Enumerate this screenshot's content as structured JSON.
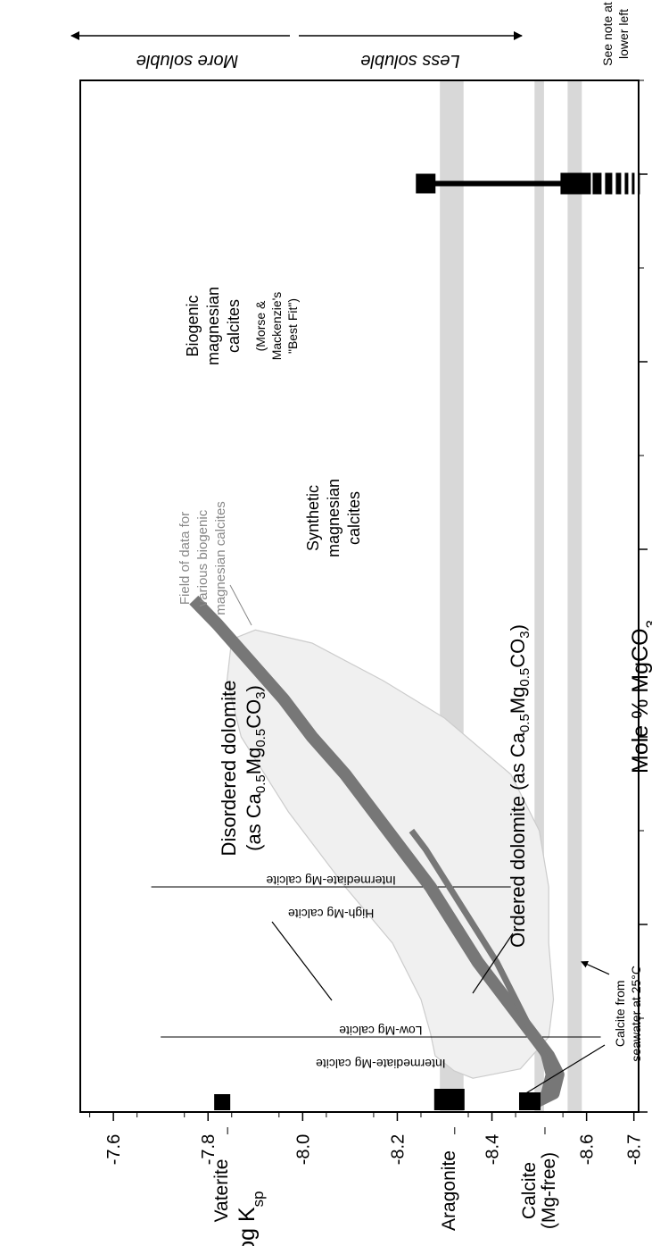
{
  "chart_data": {
    "type": "line",
    "xlabel": "Mole % MgCO",
    "xlabel_sub": "3",
    "ylabel": "Log K",
    "ylabel_sub": "sp",
    "xlim": [
      0,
      55
    ],
    "ylim": [
      -8.71,
      -7.53
    ],
    "x_ticks": [
      "0",
      "10",
      "20",
      "30",
      "40",
      "50"
    ],
    "y_ticks": [
      "-7.6",
      "-7.8",
      "-8.0",
      "-8.2",
      "-8.4",
      "-8.6",
      "-8.7"
    ],
    "y_tick_values": [
      -7.6,
      -7.8,
      -8.0,
      -8.2,
      -8.4,
      -8.6,
      -8.7
    ],
    "bands": [
      {
        "ymin": -8.34,
        "ymax": -8.29
      },
      {
        "ymin": -8.51,
        "ymax": -8.49
      },
      {
        "ymin": -8.59,
        "ymax": -8.56
      }
    ],
    "points": [
      {
        "label": "Vaterite",
        "x": 0.3,
        "y": -7.83
      },
      {
        "label": "Aragonite",
        "x": 0.3,
        "y": -8.31
      },
      {
        "label": "Calcite",
        "label2": "(Mg-free)",
        "x": 0.3,
        "y": -8.48
      }
    ],
    "series": [
      {
        "name": "Biogenic magnesian calcites",
        "color": "#777777",
        "x": [
          0.5,
          1,
          2,
          3,
          4,
          5,
          6,
          8,
          10,
          12,
          14,
          16,
          18,
          20,
          22,
          24,
          26,
          27.3
        ],
        "y": [
          -8.49,
          -8.53,
          -8.54,
          -8.52,
          -8.49,
          -8.46,
          -8.43,
          -8.37,
          -8.32,
          -8.27,
          -8.21,
          -8.15,
          -8.09,
          -8.02,
          -7.96,
          -7.89,
          -7.82,
          -7.77
        ]
      },
      {
        "name": "Synthetic magnesian calcites",
        "color": "#777777",
        "x": [
          0.5,
          1,
          2,
          3,
          4,
          5,
          6,
          8,
          10,
          12,
          14,
          15
        ],
        "y": [
          -8.49,
          -8.51,
          -8.52,
          -8.51,
          -8.49,
          -8.47,
          -8.45,
          -8.41,
          -8.36,
          -8.31,
          -8.26,
          -8.23
        ]
      }
    ],
    "biogenic_field": {
      "x": [
        1.8,
        2.3,
        4,
        6,
        9,
        12,
        15,
        18,
        21,
        23,
        25,
        25.7,
        25.2,
        23,
        20,
        16,
        12,
        9,
        6,
        4.2,
        3,
        2.2,
        1.8
      ],
      "y": [
        -8.36,
        -8.46,
        -8.52,
        -8.53,
        -8.52,
        -8.52,
        -8.5,
        -8.44,
        -8.3,
        -8.17,
        -8.02,
        -7.9,
        -7.85,
        -7.84,
        -7.87,
        -7.97,
        -8.09,
        -8.19,
        -8.25,
        -8.27,
        -8.28,
        -8.32,
        -8.36
      ]
    },
    "vlines": [
      {
        "x": 4,
        "y1": -8.63,
        "y2": -7.7,
        "left_label": "Low-Mg calcite",
        "right_label": "Intermediate-Mg calcite"
      },
      {
        "x": 12,
        "y1": -8.44,
        "y2": -7.68,
        "left_label": "Intermediate-Mg calcite",
        "right_label": "High-Mg calcite"
      }
    ],
    "dolomite": {
      "x": 49.5,
      "disordered_y": -8.26,
      "ordered_y": -8.56,
      "range_y": [
        -8.26,
        -8.56
      ],
      "dash_end_y": -8.66
    },
    "annotations": {
      "field_label": [
        "Field of data for",
        "various biogenic",
        "magnesian calcites"
      ],
      "biogenic_label": [
        "Biogenic",
        "magnesian",
        "calcites"
      ],
      "biogenic_note": [
        "(Morse &",
        "Mackenzie's",
        "\"Best Fit\")"
      ],
      "synthetic_label": [
        "Synthetic",
        "magnesian",
        "calcites"
      ],
      "disordered_label": [
        "Disordered dolomite",
        "(as Ca",
        "0.5",
        "Mg",
        "0.5",
        "CO",
        "3",
        ")"
      ],
      "ordered_label": [
        "Ordered dolomite (as Ca",
        "0.5",
        "Mg",
        "0.5",
        "CO",
        "3",
        ")"
      ],
      "seawater_label": [
        "Calcite from",
        "seawater at 25°C"
      ],
      "seawater_x": 8.2,
      "note_label": [
        "See note at",
        "lower left"
      ],
      "more_soluble": "More soluble",
      "less_soluble": "Less soluble"
    }
  }
}
